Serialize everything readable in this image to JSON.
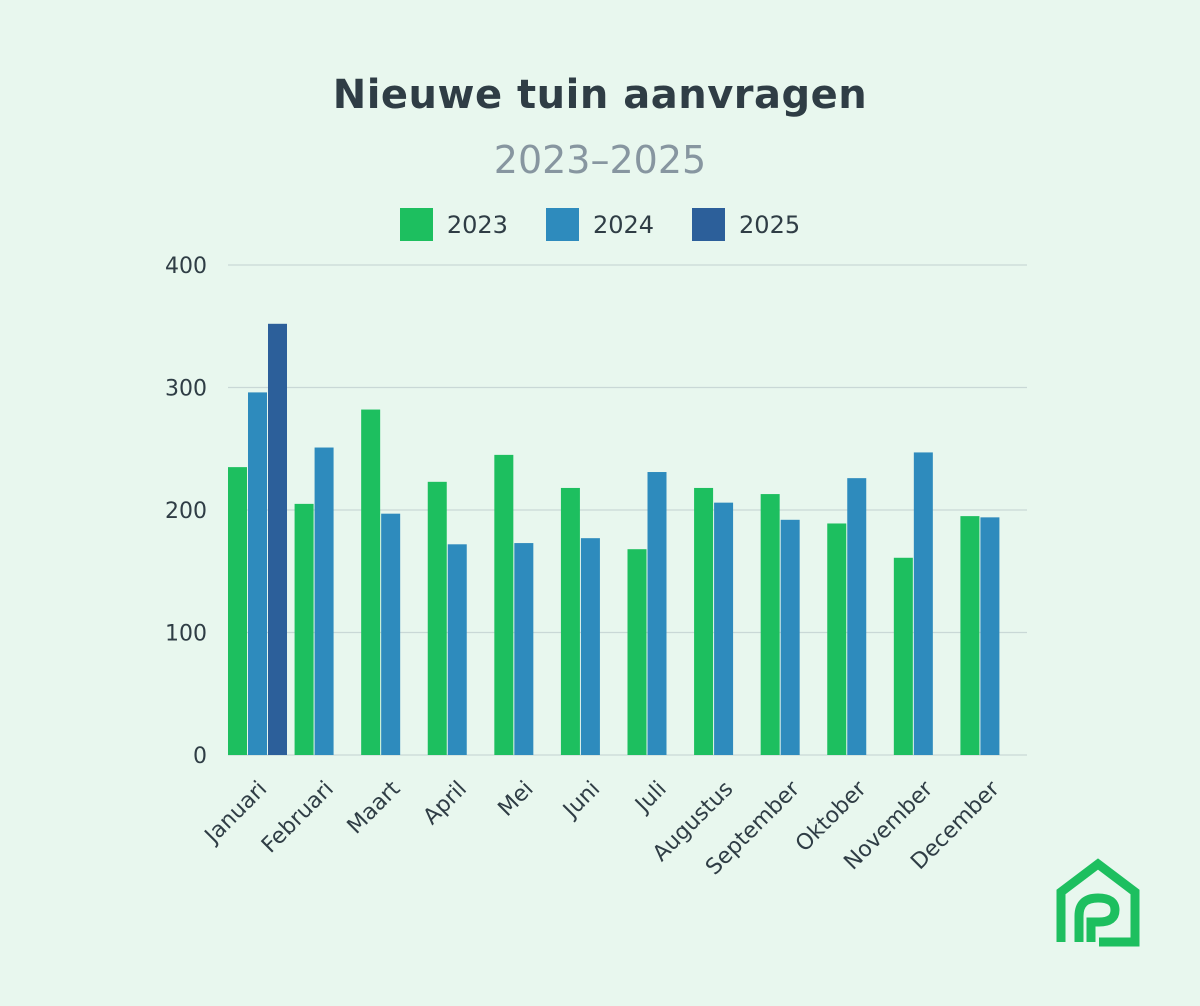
{
  "chart_data": {
    "type": "bar",
    "title": "Nieuwe tuin aanvragen",
    "subtitle": "2023–2025",
    "categories": [
      "Januari",
      "Februari",
      "Maart",
      "April",
      "Mei",
      "Juni",
      "Juli",
      "Augustus",
      "September",
      "Oktober",
      "November",
      "December"
    ],
    "series": [
      {
        "name": "2023",
        "color": "#1dbf5f",
        "values": [
          235,
          205,
          282,
          223,
          245,
          218,
          168,
          218,
          213,
          189,
          161,
          195
        ]
      },
      {
        "name": "2024",
        "color": "#2e8bbd",
        "values": [
          296,
          251,
          197,
          172,
          173,
          177,
          231,
          206,
          192,
          226,
          247,
          194
        ]
      },
      {
        "name": "2025",
        "color": "#2c5f9a",
        "values": [
          352,
          null,
          null,
          null,
          null,
          null,
          null,
          null,
          null,
          null,
          null,
          null
        ]
      }
    ],
    "yticks": [
      0,
      100,
      200,
      300,
      400
    ],
    "ylim": [
      0,
      400
    ],
    "grid": true,
    "legend": "top-center",
    "gridColor": "#c9d8d6"
  },
  "brand": {
    "logo": "house-logo-icon",
    "color": "#1dbf5f"
  }
}
